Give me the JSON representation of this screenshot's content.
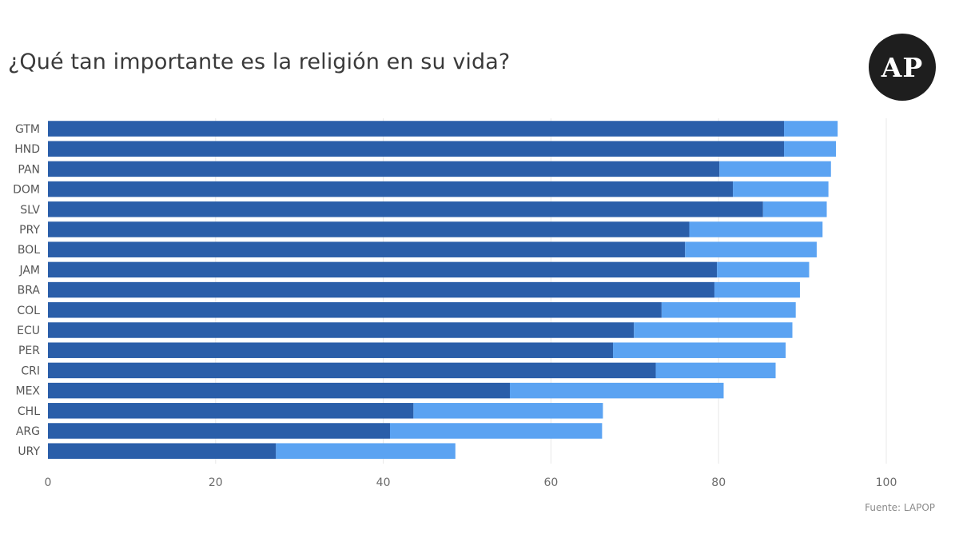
{
  "logo_text": "AP",
  "source_text": "Fuente: LAPOP",
  "colors": {
    "dark_series": "#2a5ea9",
    "light_series": "#5ba3f2",
    "grid": "#e8e8e8"
  },
  "chart_data": {
    "type": "bar",
    "orientation": "horizontal",
    "stacked": true,
    "title": "¿Qué tan importante es la religión en su vida?",
    "categories": [
      "GTM",
      "HND",
      "PAN",
      "DOM",
      "SLV",
      "PRY",
      "BOL",
      "JAM",
      "BRA",
      "COL",
      "ECU",
      "PER",
      "CRI",
      "MEX",
      "CHL",
      "ARG",
      "URY"
    ],
    "series": [
      {
        "values": [
          87.8,
          87.8,
          80.1,
          81.7,
          85.3,
          76.5,
          76.0,
          79.8,
          79.5,
          73.2,
          69.9,
          67.4,
          72.5,
          55.1,
          43.6,
          40.8,
          27.2
        ]
      },
      {
        "values": [
          6.4,
          6.2,
          13.3,
          11.4,
          7.6,
          15.9,
          15.7,
          11.0,
          10.2,
          16.0,
          18.9,
          20.6,
          14.3,
          25.5,
          22.6,
          25.3,
          21.4
        ]
      }
    ],
    "xlim": [
      0,
      100
    ],
    "xticks": [
      "0",
      "20",
      "40",
      "60",
      "80",
      "100"
    ],
    "xtick_values": [
      0,
      20,
      40,
      60,
      80,
      100
    ],
    "grid": "vertical",
    "legend": "none"
  }
}
